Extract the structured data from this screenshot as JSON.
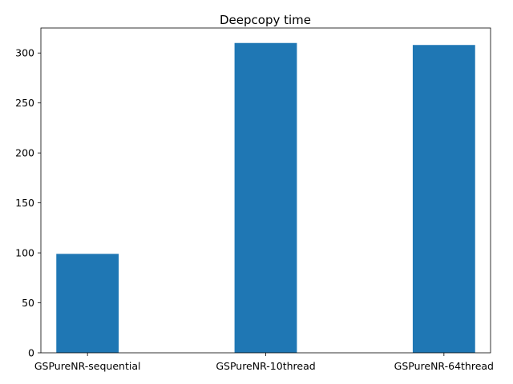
{
  "chart_data": {
    "type": "bar",
    "title": "Deepcopy time",
    "xlabel": "",
    "ylabel": "",
    "categories": [
      "GSPureNR-sequential",
      "GSPureNR-10thread",
      "GSPureNR-64thread"
    ],
    "values": [
      99,
      310,
      308
    ],
    "ylim": [
      0,
      325
    ],
    "yticks": [
      0,
      50,
      100,
      150,
      200,
      250,
      300
    ],
    "bar_color": "#1f77b4",
    "grid": false,
    "legend": "none"
  }
}
